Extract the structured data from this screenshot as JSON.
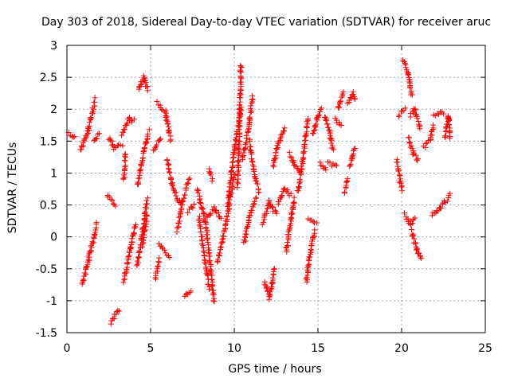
{
  "chart_data": {
    "type": "scatter",
    "title": "Day 303 of 2018, Sidereal Day-to-day VTEC variation (SDTVAR) for receiver aruc",
    "xlabel": "GPS time / hours",
    "ylabel": "SDTVAR / TECUs",
    "xlim": [
      0,
      25
    ],
    "ylim": [
      -1.5,
      3
    ],
    "xticks": [
      0,
      5,
      10,
      15,
      20,
      25
    ],
    "yticks": [
      -1.5,
      -1,
      -0.5,
      0,
      0.5,
      1,
      1.5,
      2,
      2.5,
      3
    ],
    "xtick_labels": [
      "0",
      "5",
      "10",
      "15",
      "20",
      "25"
    ],
    "ytick_labels": [
      "-1.5",
      "-1",
      "-0.5",
      "0",
      "0.5",
      "1",
      "1.5",
      "2",
      "2.5",
      "3"
    ],
    "grid": true,
    "marker": "+",
    "color": "#ff0000",
    "series": [
      {
        "name": "SDTVAR",
        "arcs": [
          [
            0.0,
            1.62,
            0.5,
            1.58
          ],
          [
            0.8,
            1.35,
            1.3,
            1.7,
            1.7,
            2.15
          ],
          [
            0.9,
            -0.75,
            1.3,
            -0.35,
            1.8,
            0.2
          ],
          [
            1.6,
            1.5,
            1.9,
            1.6
          ],
          [
            2.5,
            1.55,
            2.8,
            1.4,
            3.3,
            1.45
          ],
          [
            2.4,
            0.65,
            2.9,
            0.5
          ],
          [
            2.6,
            -1.35,
            3.1,
            -1.15
          ],
          [
            3.3,
            1.6,
            3.7,
            1.85,
            4.0,
            1.82
          ],
          [
            3.4,
            0.9,
            3.5,
            1.3
          ],
          [
            3.4,
            -0.7,
            3.8,
            -0.2,
            4.1,
            0.2
          ],
          [
            4.3,
            2.3,
            4.6,
            2.5,
            4.8,
            2.3
          ],
          [
            4.2,
            0.8,
            4.6,
            1.35,
            4.9,
            1.65
          ],
          [
            4.2,
            -0.45,
            4.6,
            0.25,
            4.8,
            0.6
          ],
          [
            4.5,
            -0.15,
            4.8,
            0.35
          ],
          [
            5.2,
            1.35,
            5.6,
            1.55
          ],
          [
            5.4,
            2.1,
            5.9,
            1.95,
            6.2,
            1.5
          ],
          [
            5.3,
            -0.65,
            5.5,
            -0.35
          ],
          [
            5.5,
            -0.1,
            6.1,
            -0.3
          ],
          [
            6.0,
            1.2,
            6.3,
            0.8,
            6.8,
            0.5
          ],
          [
            6.6,
            0.1,
            6.9,
            0.55,
            7.3,
            0.9
          ],
          [
            7.0,
            -0.95,
            7.4,
            -0.85
          ],
          [
            7.2,
            0.4,
            7.6,
            0.5
          ],
          [
            7.8,
            0.75,
            8.3,
            0.2,
            8.8,
            -1.0
          ],
          [
            7.9,
            0.3,
            8.2,
            -0.3,
            8.5,
            -0.8
          ],
          [
            8.3,
            0.3,
            8.8,
            0.45,
            9.2,
            0.3
          ],
          [
            8.5,
            1.05,
            8.7,
            0.9
          ],
          [
            9.0,
            -0.4,
            9.5,
            0.2,
            10.0,
            1.0
          ],
          [
            9.6,
            0.5,
            10.0,
            1.35,
            10.4,
            2.0
          ],
          [
            10.2,
            0.8,
            10.3,
            1.6,
            10.4,
            2.7
          ],
          [
            10.5,
            1.2,
            10.9,
            1.8,
            11.1,
            2.2
          ],
          [
            10.6,
            -0.1,
            10.9,
            0.3,
            11.3,
            0.6
          ],
          [
            10.9,
            1.5,
            11.2,
            1.0,
            11.5,
            0.7
          ],
          [
            11.8,
            -0.7,
            12.1,
            -0.95,
            12.4,
            -0.5
          ],
          [
            11.7,
            0.2,
            12.1,
            0.55,
            12.5,
            0.35
          ],
          [
            12.3,
            1.1,
            12.6,
            1.45,
            13.0,
            1.7
          ],
          [
            12.6,
            0.5,
            13.0,
            0.75,
            13.4,
            0.65
          ],
          [
            13.1,
            -0.25,
            13.4,
            0.3,
            13.6,
            0.6
          ],
          [
            13.3,
            1.3,
            13.6,
            1.15,
            13.9,
            1.0
          ],
          [
            13.8,
            0.7,
            14.1,
            1.2,
            14.4,
            1.85
          ],
          [
            14.3,
            -0.7,
            14.5,
            -0.3,
            14.8,
            0.1
          ],
          [
            14.4,
            0.28,
            14.9,
            0.22
          ],
          [
            14.7,
            1.6,
            15.0,
            1.9,
            15.2,
            2.0
          ],
          [
            15.1,
            1.15,
            15.5,
            1.05
          ],
          [
            15.4,
            1.9,
            15.7,
            1.65,
            15.9,
            1.35
          ],
          [
            15.6,
            1.15,
            16.1,
            1.1
          ],
          [
            16.0,
            1.85,
            16.4,
            1.75
          ],
          [
            16.2,
            2.0,
            16.5,
            2.25
          ],
          [
            16.6,
            0.7,
            16.8,
            0.9
          ],
          [
            16.8,
            2.1,
            17.1,
            2.25,
            17.2,
            2.15
          ],
          [
            16.9,
            1.1,
            17.2,
            1.4
          ],
          [
            19.7,
            1.2,
            20.0,
            0.75
          ],
          [
            19.8,
            1.9,
            20.2,
            2.0
          ],
          [
            20.1,
            2.75,
            20.4,
            2.55,
            20.6,
            2.2
          ],
          [
            20.2,
            0.35,
            20.5,
            0.2,
            20.8,
            0.3
          ],
          [
            20.4,
            1.55,
            20.7,
            1.3,
            21.0,
            1.2
          ],
          [
            20.6,
            0.1,
            20.9,
            -0.2,
            21.2,
            -0.35
          ],
          [
            20.5,
            1.9,
            20.8,
            2.0,
            21.1,
            1.7
          ],
          [
            21.3,
            1.4,
            21.7,
            1.5,
            21.9,
            1.75
          ],
          [
            21.8,
            0.35,
            22.3,
            0.45,
            22.9,
            0.65
          ],
          [
            21.9,
            1.9,
            22.5,
            1.95
          ],
          [
            22.6,
            1.55,
            22.8,
            1.9,
            22.9,
            1.55
          ]
        ]
      }
    ]
  }
}
